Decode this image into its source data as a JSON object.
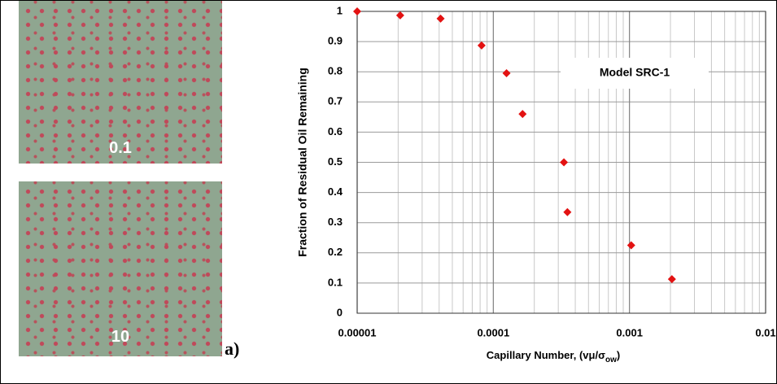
{
  "panel_label": "a)",
  "images": [
    {
      "label": "0.1"
    },
    {
      "label": "10"
    }
  ],
  "chart_data": {
    "type": "scatter",
    "annotation": "Model SRC-1",
    "x_label": {
      "text": "Capillary Number,  (vμ/σ",
      "subscript": "ow",
      "suffix": ")"
    },
    "y_label": "Fraction of Residual Oil Remaining",
    "x": [
      1e-05,
      2.07e-05,
      4.1e-05,
      8.2e-05,
      0.000125,
      0.000164,
      0.00033,
      0.00035,
      0.00103,
      0.00205
    ],
    "series": [
      {
        "name": "Model SRC-1",
        "color": "#e31212",
        "values": [
          1.0,
          0.987,
          0.976,
          0.887,
          0.795,
          0.66,
          0.5,
          0.335,
          0.225,
          0.113
        ]
      }
    ],
    "xscale": "log",
    "xlim": [
      1e-05,
      0.01
    ],
    "xticks": [
      {
        "value": 1e-05,
        "label": "0.00001"
      },
      0.0001,
      0.001,
      0.01
    ],
    "ylim": [
      0,
      1
    ],
    "yticks": [
      0,
      0.1,
      0.2,
      0.3,
      0.4,
      0.5,
      0.6,
      0.7,
      0.8,
      0.9,
      1
    ],
    "grid": true,
    "marker": "diamond"
  }
}
